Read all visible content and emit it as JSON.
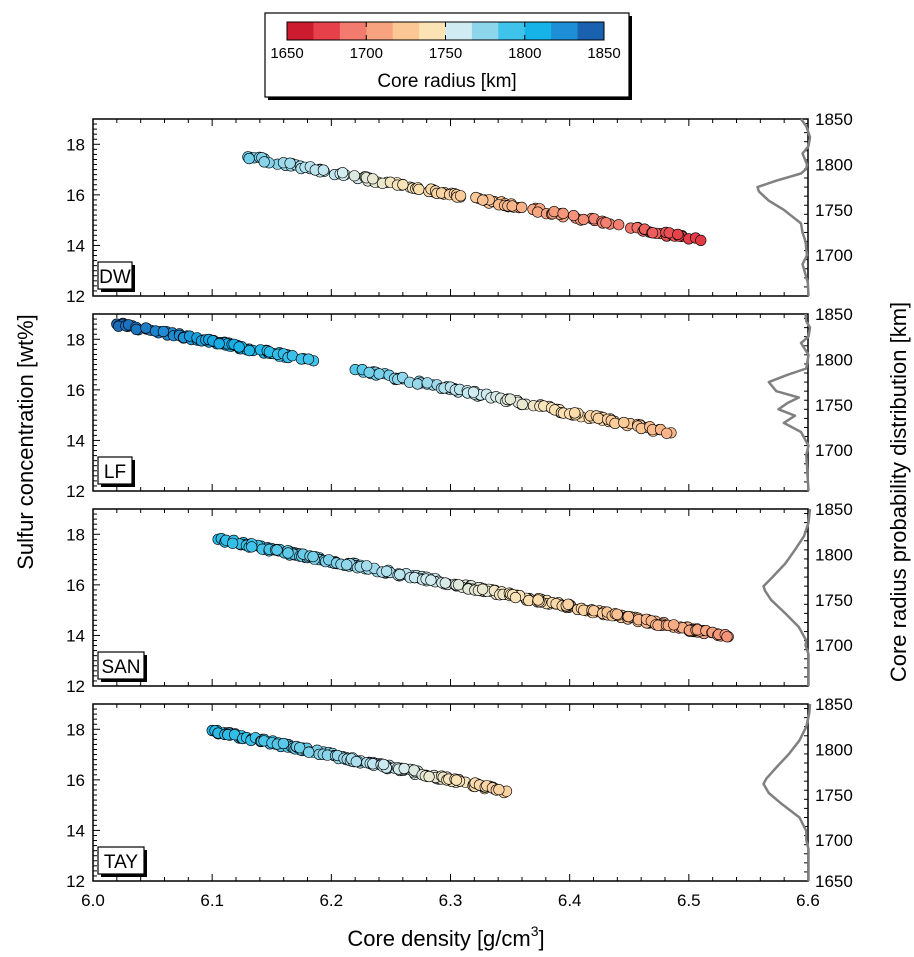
{
  "chart_data": {
    "type": "scatter",
    "xlabel": "Core density [g/cm",
    "xlabel_sup": "3",
    "xlabel_end": "]",
    "ylabel": "Sulfur concentration [wt%]",
    "ylabel_right": "Core radius probability distribution [km]",
    "xlim": [
      6.0,
      6.6
    ],
    "xticks": [
      "6.0",
      "6.1",
      "6.2",
      "6.3",
      "6.4",
      "6.5",
      "6.6"
    ],
    "ylim": [
      12,
      19
    ],
    "yticks": [
      "12",
      "14",
      "16",
      "18"
    ],
    "right_ticks": [
      "1650",
      "1700",
      "1750",
      "1800",
      "1850"
    ],
    "right_lim": [
      1655,
      1850
    ],
    "colorbar": {
      "label": "Core radius [km]",
      "range": [
        1650,
        1850
      ],
      "ticks": [
        "1650",
        "1700",
        "1750",
        "1800",
        "1850"
      ],
      "colors": [
        "#cc1a2e",
        "#e6414a",
        "#f27a6e",
        "#f7a37f",
        "#fbc795",
        "#fbe3b4",
        "#d0ecf2",
        "#8cd5ea",
        "#3fc3ea",
        "#16b3e8",
        "#1e8ed6",
        "#1a61b0"
      ]
    },
    "marker_edge_color": "#000000",
    "pdf_line_color": "#808080",
    "panels": [
      {
        "label": "DW",
        "segments": [
          {
            "x0": 6.13,
            "y0": 17.5,
            "x1": 6.51,
            "y1": 14.2,
            "r0": 1785,
            "r1": 1665,
            "n": 150
          }
        ],
        "pdf": [
          [
            1655,
            0.02
          ],
          [
            1670,
            0.03
          ],
          [
            1690,
            0.1
          ],
          [
            1700,
            0.04
          ],
          [
            1715,
            0.06
          ],
          [
            1725,
            0.1
          ],
          [
            1735,
            0.12
          ],
          [
            1750,
            0.35
          ],
          [
            1760,
            0.55
          ],
          [
            1770,
            0.68
          ],
          [
            1775,
            0.7
          ],
          [
            1782,
            0.45
          ],
          [
            1790,
            0.12
          ],
          [
            1795,
            0.05
          ],
          [
            1800,
            0.04
          ],
          [
            1812,
            0.1
          ],
          [
            1820,
            0.02
          ],
          [
            1830,
            0.0
          ],
          [
            1842,
            0.05
          ],
          [
            1850,
            0.12
          ]
        ]
      },
      {
        "label": "LF",
        "segments": [
          {
            "x0": 6.02,
            "y0": 18.6,
            "x1": 6.185,
            "y1": 17.15,
            "r0": 1848,
            "r1": 1795,
            "n": 100
          },
          {
            "x0": 6.22,
            "y0": 16.8,
            "x1": 6.485,
            "y1": 14.3,
            "r0": 1790,
            "r1": 1715,
            "n": 120
          }
        ],
        "pdf": [
          [
            1655,
            0.02
          ],
          [
            1695,
            0.05
          ],
          [
            1705,
            0.02
          ],
          [
            1720,
            0.12
          ],
          [
            1730,
            0.35
          ],
          [
            1738,
            0.2
          ],
          [
            1745,
            0.42
          ],
          [
            1752,
            0.3
          ],
          [
            1758,
            0.15
          ],
          [
            1765,
            0.45
          ],
          [
            1775,
            0.55
          ],
          [
            1783,
            0.3
          ],
          [
            1790,
            0.05
          ],
          [
            1805,
            0.02
          ],
          [
            1818,
            0.12
          ],
          [
            1825,
            0.02
          ],
          [
            1835,
            0.0
          ],
          [
            1842,
            0.05
          ],
          [
            1850,
            0.06
          ]
        ]
      },
      {
        "label": "SAN",
        "segments": [
          {
            "x0": 6.105,
            "y0": 17.8,
            "x1": 6.533,
            "y1": 13.95,
            "r0": 1805,
            "r1": 1700,
            "n": 300
          }
        ],
        "pdf": [
          [
            1655,
            0.02
          ],
          [
            1690,
            0.02
          ],
          [
            1700,
            0.06
          ],
          [
            1705,
            0.05
          ],
          [
            1720,
            0.15
          ],
          [
            1735,
            0.33
          ],
          [
            1750,
            0.52
          ],
          [
            1760,
            0.6
          ],
          [
            1765,
            0.62
          ],
          [
            1775,
            0.5
          ],
          [
            1790,
            0.33
          ],
          [
            1805,
            0.2
          ],
          [
            1820,
            0.08
          ],
          [
            1835,
            0.02
          ],
          [
            1850,
            0.0
          ]
        ]
      },
      {
        "label": "TAY",
        "segments": [
          {
            "x0": 6.1,
            "y0": 17.95,
            "x1": 6.347,
            "y1": 15.55,
            "r0": 1810,
            "r1": 1730,
            "n": 180
          }
        ],
        "pdf": [
          [
            1655,
            0.02
          ],
          [
            1690,
            0.02
          ],
          [
            1700,
            0.05
          ],
          [
            1710,
            0.05
          ],
          [
            1725,
            0.14
          ],
          [
            1740,
            0.38
          ],
          [
            1752,
            0.55
          ],
          [
            1762,
            0.62
          ],
          [
            1768,
            0.58
          ],
          [
            1780,
            0.45
          ],
          [
            1795,
            0.28
          ],
          [
            1810,
            0.14
          ],
          [
            1825,
            0.05
          ],
          [
            1840,
            0.01
          ],
          [
            1850,
            0.0
          ]
        ]
      }
    ]
  }
}
